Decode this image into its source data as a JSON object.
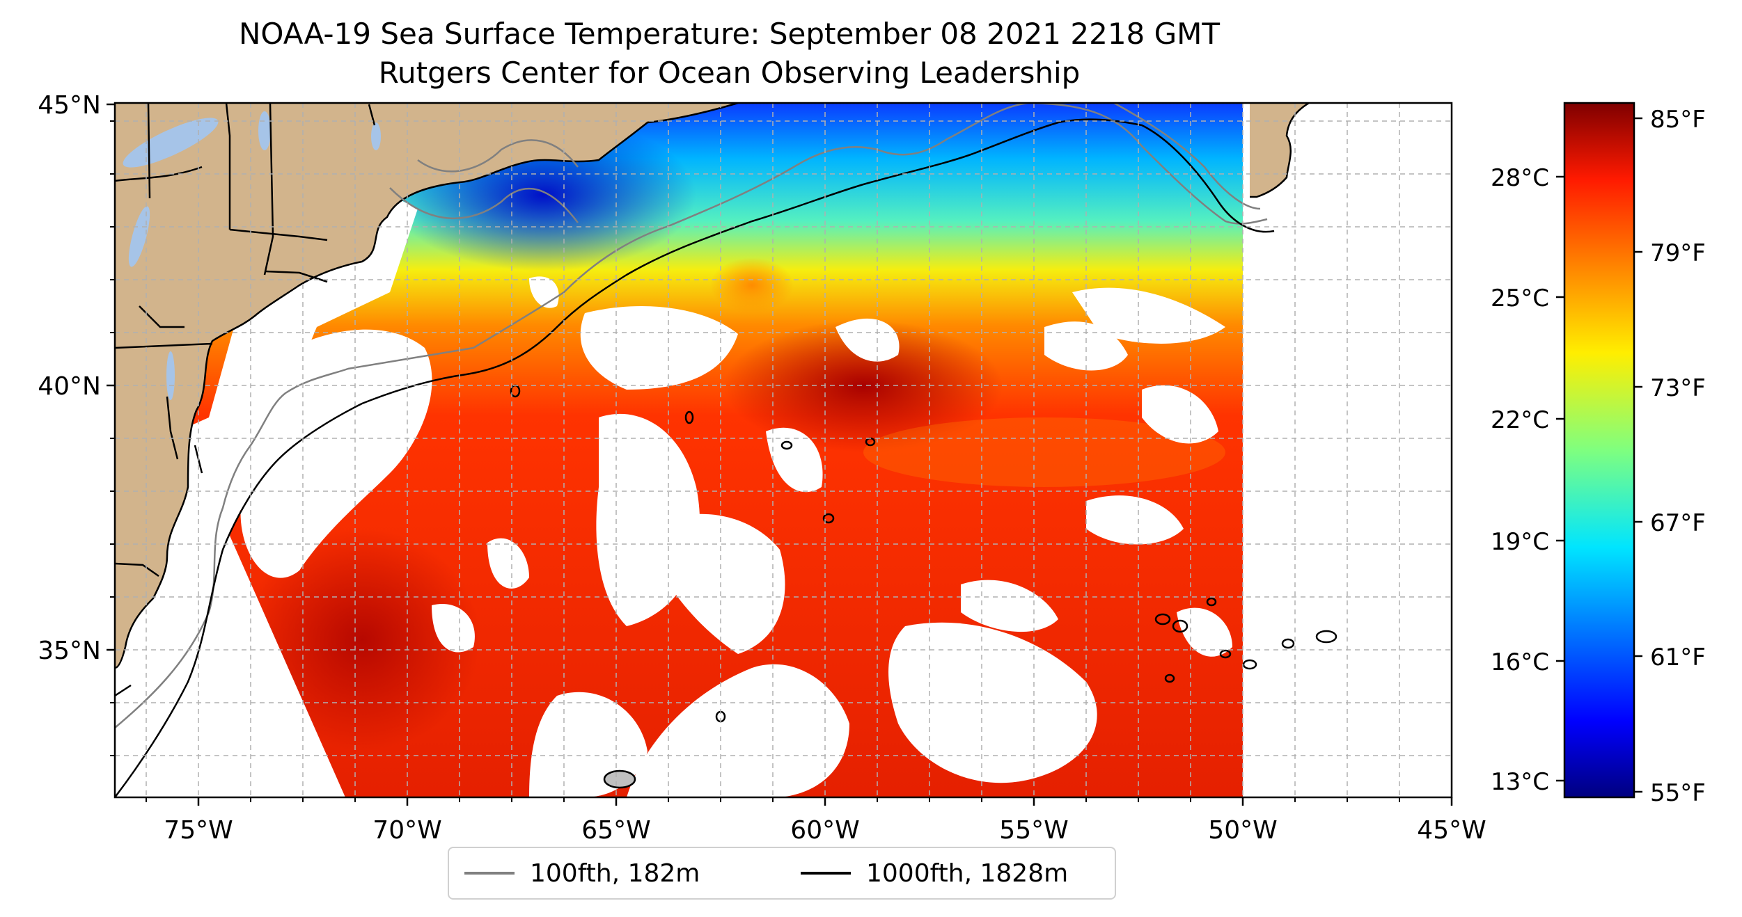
{
  "title": "NOAA-19 Sea Surface Temperature: September 08 2021 2218 GMT",
  "subtitle": "Rutgers Center for Ocean Observing Leadership",
  "map": {
    "lon_range": [
      -77,
      -45
    ],
    "lat_range": [
      32.5,
      45
    ],
    "lon_ticks": [
      "75°W",
      "70°W",
      "65°W",
      "60°W",
      "55°W",
      "50°W",
      "45°W"
    ],
    "lat_ticks": [
      "35°N",
      "40°N",
      "45°N"
    ],
    "land_color": "#d2b48c",
    "lake_color": "#a6c4e8",
    "gridlines": true
  },
  "legend": {
    "placement": "bottom-center",
    "items": [
      {
        "label": "100fth, 182m",
        "color": "#808080"
      },
      {
        "label": "1000fth, 1828m",
        "color": "#000000"
      }
    ]
  },
  "colorbar": {
    "colormap": "jet",
    "celsius_ticks": [
      "28°C",
      "25°C",
      "22°C",
      "19°C",
      "16°C",
      "13°C"
    ],
    "fahrenheit_ticks": [
      "85°F",
      "79°F",
      "73°F",
      "67°F",
      "61°F",
      "55°F"
    ]
  }
}
